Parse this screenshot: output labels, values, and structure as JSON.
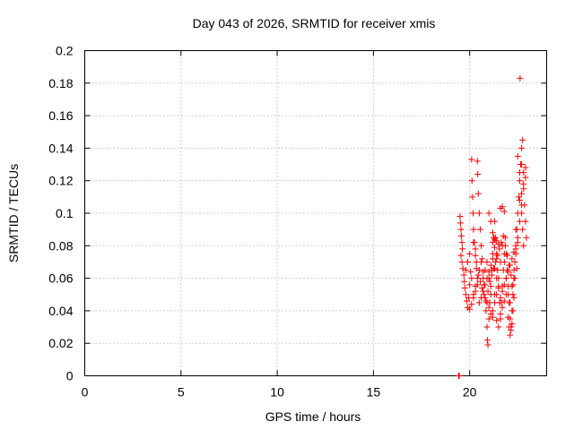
{
  "chart_data": {
    "type": "scatter",
    "title": "Day 043 of 2026, SRMTID for receiver xmis",
    "xlabel": "GPS time / hours",
    "ylabel": "SRMTID / TECUs",
    "xlim": [
      0,
      24
    ],
    "ylim": [
      0,
      0.2
    ],
    "xticks": [
      "0",
      "5",
      "10",
      "15",
      "20"
    ],
    "yticks": [
      "0",
      "0.02",
      "0.04",
      "0.06",
      "0.08",
      "0.1",
      "0.12",
      "0.14",
      "0.16",
      "0.18",
      "0.2"
    ],
    "grid": true,
    "marker": "+",
    "color": "#ff0000",
    "series": [
      {
        "name": "SRMTID",
        "points": [
          [
            19.42,
            0.0
          ],
          [
            19.46,
            0.0
          ],
          [
            19.5,
            0.098
          ],
          [
            19.52,
            0.094
          ],
          [
            19.55,
            0.09
          ],
          [
            19.57,
            0.086
          ],
          [
            19.6,
            0.082
          ],
          [
            19.62,
            0.078
          ],
          [
            19.55,
            0.074
          ],
          [
            19.6,
            0.07
          ],
          [
            19.65,
            0.066
          ],
          [
            19.7,
            0.062
          ],
          [
            19.72,
            0.058
          ],
          [
            19.75,
            0.054
          ],
          [
            19.8,
            0.05
          ],
          [
            19.85,
            0.046
          ],
          [
            19.9,
            0.042
          ],
          [
            19.95,
            0.048
          ],
          [
            20.0,
            0.056
          ],
          [
            20.05,
            0.064
          ],
          [
            20.1,
            0.133
          ],
          [
            20.12,
            0.12
          ],
          [
            20.15,
            0.11
          ],
          [
            20.18,
            0.1
          ],
          [
            20.2,
            0.09
          ],
          [
            20.25,
            0.082
          ],
          [
            20.3,
            0.074
          ],
          [
            20.35,
            0.066
          ],
          [
            20.4,
            0.132
          ],
          [
            20.42,
            0.124
          ],
          [
            20.45,
            0.112
          ],
          [
            20.5,
            0.1
          ],
          [
            20.55,
            0.09
          ],
          [
            20.6,
            0.08
          ],
          [
            20.65,
            0.072
          ],
          [
            20.7,
            0.064
          ],
          [
            20.75,
            0.056
          ],
          [
            20.8,
            0.048
          ],
          [
            20.85,
            0.04
          ],
          [
            20.9,
            0.03
          ],
          [
            20.92,
            0.022
          ],
          [
            20.95,
            0.019
          ],
          [
            21.0,
            0.035
          ],
          [
            21.05,
            0.045
          ],
          [
            21.1,
            0.055
          ],
          [
            21.15,
            0.065
          ],
          [
            21.2,
            0.075
          ],
          [
            21.25,
            0.085
          ],
          [
            21.3,
            0.095
          ],
          [
            21.35,
            0.085
          ],
          [
            21.4,
            0.075
          ],
          [
            21.45,
            0.065
          ],
          [
            21.5,
            0.055
          ],
          [
            21.55,
            0.045
          ],
          [
            21.6,
            0.035
          ],
          [
            21.65,
            0.045
          ],
          [
            21.7,
            0.055
          ],
          [
            21.75,
            0.065
          ],
          [
            21.8,
            0.075
          ],
          [
            21.85,
            0.085
          ],
          [
            21.9,
            0.075
          ],
          [
            21.95,
            0.065
          ],
          [
            22.0,
            0.055
          ],
          [
            22.05,
            0.045
          ],
          [
            22.1,
            0.035
          ],
          [
            22.15,
            0.03
          ],
          [
            22.2,
            0.04
          ],
          [
            22.25,
            0.05
          ],
          [
            22.3,
            0.06
          ],
          [
            22.35,
            0.07
          ],
          [
            22.4,
            0.08
          ],
          [
            22.45,
            0.09
          ],
          [
            22.5,
            0.1
          ],
          [
            22.55,
            0.11
          ],
          [
            22.6,
            0.12
          ],
          [
            22.65,
            0.13
          ],
          [
            22.7,
            0.14
          ],
          [
            22.75,
            0.145
          ],
          [
            22.8,
            0.125
          ],
          [
            22.85,
            0.105
          ],
          [
            22.9,
            0.095
          ],
          [
            22.95,
            0.085
          ],
          [
            22.62,
            0.183
          ],
          [
            22.7,
            0.1
          ],
          [
            22.75,
            0.09
          ],
          [
            22.8,
            0.08
          ],
          [
            19.8,
            0.065
          ],
          [
            19.9,
            0.07
          ],
          [
            20.0,
            0.075
          ],
          [
            20.1,
            0.06
          ],
          [
            20.2,
            0.05
          ],
          [
            20.3,
            0.055
          ],
          [
            20.4,
            0.06
          ],
          [
            20.5,
            0.065
          ],
          [
            20.6,
            0.07
          ],
          [
            20.7,
            0.06
          ],
          [
            20.8,
            0.065
          ],
          [
            20.9,
            0.07
          ],
          [
            21.0,
            0.06
          ],
          [
            21.1,
            0.05
          ],
          [
            21.2,
            0.04
          ],
          [
            21.3,
            0.045
          ],
          [
            21.4,
            0.05
          ],
          [
            21.5,
            0.06
          ],
          [
            21.6,
            0.07
          ],
          [
            21.7,
            0.08
          ],
          [
            21.8,
            0.07
          ],
          [
            21.9,
            0.06
          ],
          [
            22.0,
            0.05
          ],
          [
            22.1,
            0.045
          ],
          [
            22.2,
            0.055
          ],
          [
            22.3,
            0.065
          ],
          [
            22.4,
            0.075
          ],
          [
            22.5,
            0.085
          ],
          [
            22.6,
            0.095
          ],
          [
            22.7,
            0.105
          ],
          [
            22.8,
            0.115
          ],
          [
            22.9,
            0.128
          ],
          [
            22.7,
            0.13
          ],
          [
            22.6,
            0.125
          ],
          [
            22.5,
            0.135
          ],
          [
            22.4,
            0.09
          ],
          [
            20.2,
            0.082
          ],
          [
            20.3,
            0.078
          ],
          [
            20.35,
            0.07
          ],
          [
            20.45,
            0.062
          ],
          [
            20.55,
            0.058
          ],
          [
            20.65,
            0.054
          ],
          [
            20.75,
            0.05
          ],
          [
            20.85,
            0.046
          ],
          [
            20.95,
            0.052
          ],
          [
            21.05,
            0.058
          ],
          [
            21.15,
            0.062
          ],
          [
            21.25,
            0.066
          ],
          [
            21.35,
            0.07
          ],
          [
            21.45,
            0.074
          ],
          [
            21.55,
            0.078
          ],
          [
            21.65,
            0.082
          ],
          [
            21.75,
            0.086
          ],
          [
            21.85,
            0.08
          ],
          [
            21.95,
            0.074
          ],
          [
            22.05,
            0.068
          ],
          [
            22.15,
            0.062
          ],
          [
            22.25,
            0.056
          ],
          [
            22.35,
            0.06
          ],
          [
            22.45,
            0.066
          ],
          [
            21.2,
            0.082
          ],
          [
            21.3,
            0.084
          ],
          [
            21.4,
            0.083
          ],
          [
            21.5,
            0.081
          ],
          [
            21.6,
            0.103
          ],
          [
            21.7,
            0.104
          ],
          [
            21.8,
            0.101
          ],
          [
            21.0,
            0.1
          ],
          [
            21.1,
            0.095
          ],
          [
            21.2,
            0.088
          ],
          [
            21.3,
            0.079
          ],
          [
            21.4,
            0.072
          ],
          [
            20.9,
            0.045
          ],
          [
            21.0,
            0.042
          ],
          [
            21.1,
            0.038
          ],
          [
            21.2,
            0.036
          ],
          [
            21.3,
            0.05
          ],
          [
            21.4,
            0.034
          ],
          [
            21.5,
            0.03
          ],
          [
            21.6,
            0.038
          ],
          [
            21.7,
            0.042
          ],
          [
            21.8,
            0.046
          ],
          [
            21.9,
            0.05
          ],
          [
            22.0,
            0.036
          ],
          [
            22.05,
            0.03
          ],
          [
            22.1,
            0.025
          ],
          [
            22.15,
            0.028
          ],
          [
            22.2,
            0.032
          ],
          [
            22.25,
            0.04
          ],
          [
            22.3,
            0.048
          ],
          [
            20.0,
            0.041
          ],
          [
            20.1,
            0.044
          ],
          [
            20.2,
            0.048
          ],
          [
            20.3,
            0.052
          ],
          [
            20.4,
            0.056
          ],
          [
            20.5,
            0.045
          ],
          [
            20.6,
            0.048
          ],
          [
            20.7,
            0.052
          ],
          [
            20.8,
            0.056
          ],
          [
            20.9,
            0.06
          ],
          [
            21.0,
            0.064
          ],
          [
            21.1,
            0.068
          ],
          [
            21.2,
            0.072
          ],
          [
            21.3,
            0.066
          ],
          [
            21.4,
            0.06
          ],
          [
            21.5,
            0.054
          ],
          [
            21.6,
            0.048
          ],
          [
            21.7,
            0.052
          ],
          [
            21.8,
            0.056
          ],
          [
            21.9,
            0.06
          ],
          [
            22.0,
            0.064
          ],
          [
            22.1,
            0.068
          ],
          [
            22.2,
            0.072
          ],
          [
            22.3,
            0.076
          ],
          [
            22.4,
            0.078
          ],
          [
            22.5,
            0.082
          ],
          [
            22.6,
            0.108
          ],
          [
            22.7,
            0.112
          ],
          [
            22.8,
            0.118
          ],
          [
            22.9,
            0.122
          ]
        ]
      }
    ]
  }
}
